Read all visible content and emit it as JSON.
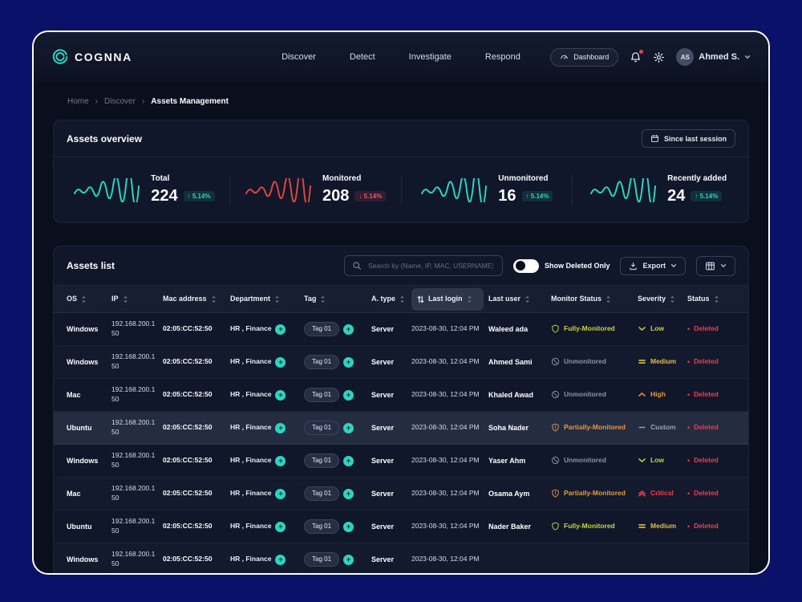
{
  "header": {
    "brand": "COGNNA",
    "nav": [
      "Discover",
      "Detect",
      "Investigate",
      "Respond"
    ],
    "dashboard_label": "Dashboard",
    "user": {
      "initials": "AS",
      "name": "Ahmed S."
    }
  },
  "breadcrumb": {
    "separator": "›",
    "items": [
      "Home",
      "Discover",
      "Assets Management"
    ]
  },
  "overview": {
    "title": "Assets overview",
    "since_label": "Since last session",
    "stats": [
      {
        "label": "Total",
        "value": "224",
        "arrow": "↑",
        "delta": "5.14%",
        "direction": "up",
        "spark_color": "#2dd4bf"
      },
      {
        "label": "Monitored",
        "value": "208",
        "arrow": "↓",
        "delta": "5.14%",
        "direction": "down",
        "spark_color": "#e0443e"
      },
      {
        "label": "Unmonitored",
        "value": "16",
        "arrow": "↑",
        "delta": "5.14%",
        "direction": "up",
        "spark_color": "#2dd4bf"
      },
      {
        "label": "Recently added",
        "value": "24",
        "arrow": "↑",
        "delta": "5.14%",
        "direction": "up",
        "spark_color": "#2dd4bf"
      }
    ]
  },
  "assets_list": {
    "title": "Assets list",
    "search_placeholder": "Search by (Name, IP, MAC, USERNAME)",
    "toggle_label": "Show Deleted Only",
    "export_label": "Export"
  },
  "table": {
    "columns": [
      "OS",
      "IP",
      "Mac address",
      "Department",
      "Tag",
      "A. type",
      "Last login",
      "Last user",
      "Monitor Status",
      "Severity",
      "Status"
    ],
    "active_column_index": 6,
    "rows": [
      {
        "os": "Windows",
        "ip": "192.168.200.150",
        "mac": "02:05:CC:52:50",
        "department": "HR , Finance",
        "tag": "Tag 01",
        "type": "Server",
        "last_login": "2023-08-30, 12:04 PM",
        "last_user": "Waleed ada",
        "monitor": "Fully-Monitored",
        "monitor_kind": "full",
        "severity": "Low",
        "severity_kind": "low",
        "status": "Deleted",
        "highlighted": false
      },
      {
        "os": "Windows",
        "ip": "192.168.200.150",
        "mac": "02:05:CC:52:50",
        "department": "HR , Finance",
        "tag": "Tag 01",
        "type": "Server",
        "last_login": "2023-08-30, 12:04 PM",
        "last_user": "Ahmed Sami",
        "monitor": "Unmonitored",
        "monitor_kind": "none",
        "severity": "Medium",
        "severity_kind": "medium",
        "status": "Deleted",
        "highlighted": false
      },
      {
        "os": "Mac",
        "ip": "192.168.200.150",
        "mac": "02:05:CC:52:50",
        "department": "HR , Finance",
        "tag": "Tag 01",
        "type": "Server",
        "last_login": "2023-08-30, 12:04 PM",
        "last_user": "Khaled Awad",
        "monitor": "Unmonitored",
        "monitor_kind": "none",
        "severity": "High",
        "severity_kind": "high",
        "status": "Deleted",
        "highlighted": false
      },
      {
        "os": "Ubuntu",
        "ip": "192.168.200.150",
        "mac": "02:05:CC:52:50",
        "department": "HR , Finance",
        "tag": "Tag 01",
        "type": "Server",
        "last_login": "2023-08-30, 12:04 PM",
        "last_user": "Soha Nader",
        "monitor": "Partially-Monitored",
        "monitor_kind": "partial",
        "severity": "Custom",
        "severity_kind": "custom",
        "status": "Deleted",
        "highlighted": true
      },
      {
        "os": "Windows",
        "ip": "192.168.200.150",
        "mac": "02:05:CC:52:50",
        "department": "HR , Finance",
        "tag": "Tag 01",
        "type": "Server",
        "last_login": "2023-08-30, 12:04 PM",
        "last_user": "Yaser Ahm",
        "monitor": "Unmonitored",
        "monitor_kind": "none",
        "severity": "Low",
        "severity_kind": "low",
        "status": "Deleted",
        "highlighted": false
      },
      {
        "os": "Mac",
        "ip": "192.168.200.150",
        "mac": "02:05:CC:52:50",
        "department": "HR , Finance",
        "tag": "Tag 01",
        "type": "Server",
        "last_login": "2023-08-30, 12:04 PM",
        "last_user": "Osama Aym",
        "monitor": "Partially-Monitored",
        "monitor_kind": "partial",
        "severity": "Critical",
        "severity_kind": "critical",
        "status": "Deleted",
        "highlighted": false
      },
      {
        "os": "Ubuntu",
        "ip": "192.168.200.150",
        "mac": "02:05:CC:52:50",
        "department": "HR , Finance",
        "tag": "Tag 01",
        "type": "Server",
        "last_login": "2023-08-30, 12:04 PM",
        "last_user": "Nader Baker",
        "monitor": "Fully-Monitored",
        "monitor_kind": "full",
        "severity": "Medium",
        "severity_kind": "medium",
        "status": "Deleted",
        "highlighted": false
      },
      {
        "os": "Windows",
        "ip": "192.168.200.150",
        "mac": "02:05:CC:52:50",
        "department": "HR , Finance",
        "tag": "Tag 01",
        "type": "Server",
        "last_login": "2023-08-30, 12:04 PM",
        "last_user": "",
        "monitor": "",
        "monitor_kind": "",
        "severity": "",
        "severity_kind": "",
        "status": "",
        "highlighted": false
      }
    ]
  },
  "icons": {
    "plus": "+",
    "bullet": "•"
  },
  "colors": {
    "accent": "#2dd4bf",
    "monitor": {
      "full": "#c9d23e",
      "partial": "#e79a3c",
      "none": "#8b93a7"
    },
    "severity": {
      "low": "#c9d23e",
      "medium": "#dfc03a",
      "high": "#e79a3c",
      "critical": "#f23d4c",
      "custom": "#9aa3b5"
    },
    "deleted": "#f23d4c"
  }
}
